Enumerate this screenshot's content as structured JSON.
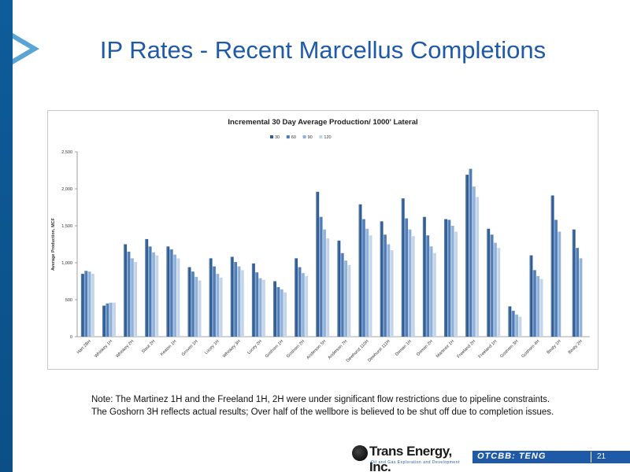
{
  "slide": {
    "title": "IP Rates - Recent Marcellus Completions",
    "note_line1": "Note: The Martinez 1H and the Freeland 1H, 2H were under significant flow restrictions due to pipeline constraints.",
    "note_line2": "The Goshorn 3H reflects actual results; Over half of the wellbore is believed to be shut off due to completion issues.",
    "logo_text": "Trans Energy, Inc.",
    "logo_subtext": "Oil and Gas Exploration and Development",
    "ticker": "OTCBB: TENG",
    "page_number": "21"
  },
  "colors": {
    "brand_blue": "#1f5aa8",
    "left_bar": "#0e5c9a",
    "series_30": "#2e5c93",
    "series_60": "#4d7bb6",
    "series_90": "#8fb0d8",
    "series_120": "#c3d3e8"
  },
  "chart_data": {
    "type": "bar",
    "title": "Incremental 30 Day Average Production/ 1000' Lateral",
    "xlabel": "",
    "ylabel": "Average Production, MCF",
    "ylim": [
      0,
      2500
    ],
    "yticks": [
      0,
      500,
      1000,
      1500,
      2000,
      2500
    ],
    "ytick_labels": [
      "0",
      "500",
      "1,000",
      "1,500",
      "2,000",
      "2,500"
    ],
    "legend_position": "top-center",
    "grid": false,
    "categories": [
      "Hart 2BH",
      "Whiskey 1H",
      "Whiskey 2H",
      "Stout 2H",
      "Keaton 1H",
      "Groves 1H",
      "Lucey 1H",
      "Whiskey 3H",
      "Lucey 2H",
      "Goshorn 1H",
      "Goshorn 2H",
      "Anderson 5H",
      "Anderson 7H",
      "Dewhurst 110H",
      "Dewhurst 111H",
      "Doman 1H",
      "Doman 2H",
      "Martinez 1H",
      "Freeland 2H",
      "Freeland 1H",
      "Goshorn 3H",
      "Goshorn 4H",
      "Beaty 1H",
      "Beaty 2H"
    ],
    "series": [
      {
        "name": "30",
        "values": [
          850,
          420,
          1250,
          1320,
          1220,
          940,
          1060,
          1080,
          990,
          750,
          1060,
          1960,
          1300,
          1790,
          1560,
          1870,
          1620,
          1590,
          2190,
          1460,
          410,
          1100,
          1910,
          1450
        ]
      },
      {
        "name": "60",
        "values": [
          890,
          450,
          1150,
          1220,
          1180,
          880,
          950,
          1010,
          870,
          670,
          940,
          1620,
          1130,
          1590,
          1380,
          1600,
          1370,
          1580,
          2270,
          1380,
          350,
          900,
          1580,
          1200
        ]
      },
      {
        "name": "90",
        "values": [
          880,
          460,
          1060,
          1140,
          1110,
          810,
          850,
          950,
          790,
          640,
          860,
          1450,
          1030,
          1460,
          1250,
          1450,
          1220,
          1500,
          2030,
          1270,
          300,
          820,
          1420,
          1060
        ]
      },
      {
        "name": "120",
        "values": [
          850,
          460,
          1010,
          1100,
          1060,
          760,
          800,
          900,
          770,
          600,
          820,
          1330,
          970,
          1370,
          1170,
          1360,
          1130,
          1420,
          1890,
          1200,
          270,
          780,
          null,
          null
        ]
      }
    ]
  }
}
